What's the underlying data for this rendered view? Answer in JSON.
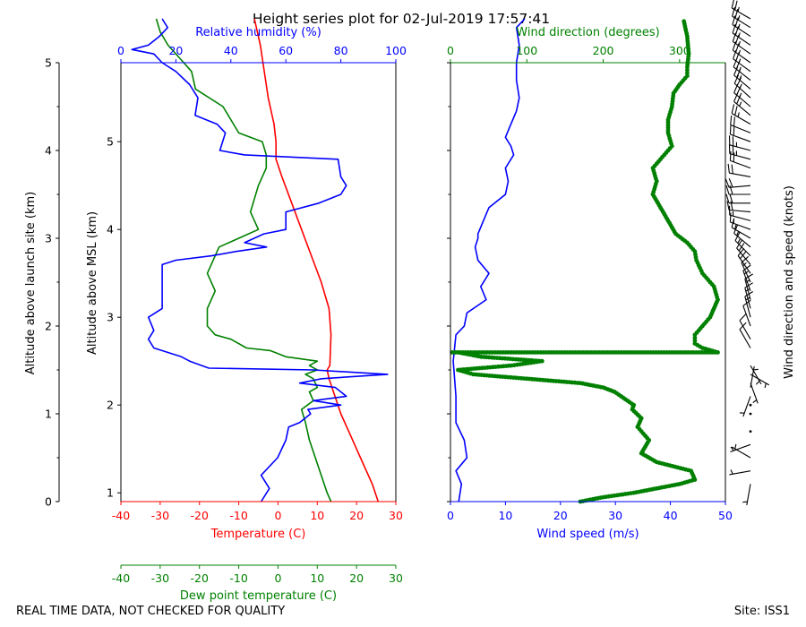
{
  "title": "Height series plot for 02-Jul-2019 17:57:41",
  "footer": {
    "left": "REAL TIME DATA, NOT CHECKED FOR QUALITY",
    "right": "Site: ISS1"
  },
  "colors": {
    "temperature": "#ff0000",
    "dewpoint": "#008000",
    "humidity": "#0000ff",
    "wind_speed": "#0000ff",
    "wind_direction": "#008000",
    "barbs": "#000000"
  },
  "chart_data": [
    {
      "type": "line",
      "name": "thermodynamic-profile",
      "axes": {
        "y_left_outer": {
          "label": "Altitude above launch site (km)",
          "range": [
            0,
            5
          ],
          "ticks": [
            0,
            1,
            2,
            3,
            4,
            5
          ]
        },
        "y_left_inner": {
          "label": "Altitude above MSL (km)",
          "range": [
            0.9,
            5.9
          ],
          "ticks": [
            1,
            2,
            3,
            4,
            5
          ],
          "tick_labels": [
            "1",
            "2",
            "3",
            "4",
            "5"
          ]
        },
        "x_top": {
          "label": "Relative humidity (%)",
          "range": [
            0,
            100
          ],
          "ticks": [
            0,
            20,
            40,
            60,
            80,
            100
          ]
        },
        "x_bottom": {
          "label": "Temperature (C)",
          "range": [
            -40,
            30
          ],
          "ticks": [
            -40,
            -30,
            -20,
            -10,
            0,
            10,
            20,
            30
          ]
        },
        "x_bottom2": {
          "label": "Dew point temperature (C)",
          "range": [
            -40,
            30
          ],
          "ticks": [
            -40,
            -30,
            -20,
            -10,
            0,
            10,
            20,
            30
          ]
        }
      },
      "series": [
        {
          "name": "Temperature",
          "axis": "x_bottom",
          "points": [
            [
              25.5,
              0
            ],
            [
              24,
              0.2
            ],
            [
              21,
              0.5
            ],
            [
              18,
              0.8
            ],
            [
              16,
              1.0
            ],
            [
              14.5,
              1.2
            ],
            [
              13,
              1.4
            ],
            [
              12.5,
              1.5
            ],
            [
              13.2,
              1.55
            ],
            [
              13.5,
              1.9
            ],
            [
              13,
              2.2
            ],
            [
              11,
              2.5
            ],
            [
              8.5,
              2.8
            ],
            [
              6,
              3.1
            ],
            [
              3.5,
              3.4
            ],
            [
              1,
              3.7
            ],
            [
              -0.5,
              3.9
            ],
            [
              -0.5,
              4.1
            ],
            [
              -1,
              4.3
            ],
            [
              -2.5,
              4.6
            ],
            [
              -3.5,
              4.9
            ],
            [
              -4.5,
              5.2
            ],
            [
              -6,
              5.5
            ]
          ]
        },
        {
          "name": "Dew point",
          "axis": "x_bottom2",
          "points": [
            [
              13.5,
              0
            ],
            [
              12.5,
              0.1
            ],
            [
              11,
              0.3
            ],
            [
              9.5,
              0.5
            ],
            [
              8,
              0.7
            ],
            [
              7,
              0.9
            ],
            [
              6,
              1.05
            ],
            [
              9,
              1.15
            ],
            [
              8,
              1.25
            ],
            [
              10,
              1.3
            ],
            [
              9,
              1.4
            ],
            [
              7,
              1.45
            ],
            [
              10,
              1.5
            ],
            [
              8,
              1.55
            ],
            [
              10,
              1.6
            ],
            [
              2,
              1.65
            ],
            [
              -2,
              1.72
            ],
            [
              -8,
              1.75
            ],
            [
              -12,
              1.85
            ],
            [
              -16,
              1.9
            ],
            [
              -18,
              2.0
            ],
            [
              -18,
              2.2
            ],
            [
              -17,
              2.3
            ],
            [
              -16,
              2.4
            ],
            [
              -18,
              2.6
            ],
            [
              -15,
              2.9
            ],
            [
              -10,
              3.0
            ],
            [
              -5,
              3.1
            ],
            [
              -6,
              3.2
            ],
            [
              -7,
              3.3
            ],
            [
              -5,
              3.6
            ],
            [
              -3,
              3.8
            ],
            [
              -3,
              3.95
            ],
            [
              -4,
              4.1
            ],
            [
              -10,
              4.2
            ],
            [
              -14,
              4.5
            ],
            [
              -21,
              4.7
            ],
            [
              -22,
              4.9
            ],
            [
              -24,
              5.0
            ],
            [
              -28,
              5.2
            ],
            [
              -30,
              5.35
            ],
            [
              -31,
              5.5
            ]
          ]
        },
        {
          "name": "Relative humidity",
          "axis": "x_top",
          "points": [
            [
              51,
              0
            ],
            [
              54,
              0.15
            ],
            [
              51,
              0.3
            ],
            [
              57,
              0.5
            ],
            [
              60,
              0.7
            ],
            [
              61,
              0.85
            ],
            [
              65,
              0.9
            ],
            [
              69,
              1.0
            ],
            [
              68,
              1.05
            ],
            [
              80,
              1.1
            ],
            [
              70,
              1.15
            ],
            [
              82,
              1.2
            ],
            [
              78,
              1.3
            ],
            [
              65,
              1.35
            ],
            [
              73,
              1.4
            ],
            [
              97,
              1.45
            ],
            [
              70,
              1.5
            ],
            [
              32,
              1.52
            ],
            [
              25,
              1.6
            ],
            [
              22,
              1.65
            ],
            [
              12,
              1.75
            ],
            [
              10,
              1.85
            ],
            [
              12,
              1.95
            ],
            [
              10,
              2.1
            ],
            [
              15,
              2.2
            ],
            [
              15,
              2.45
            ],
            [
              15,
              2.7
            ],
            [
              20,
              2.75
            ],
            [
              33,
              2.8
            ],
            [
              42,
              2.85
            ],
            [
              53,
              2.9
            ],
            [
              45,
              2.95
            ],
            [
              52,
              3.05
            ],
            [
              60,
              3.1
            ],
            [
              60,
              3.3
            ],
            [
              72,
              3.4
            ],
            [
              80,
              3.5
            ],
            [
              82,
              3.6
            ],
            [
              80,
              3.7
            ],
            [
              79,
              3.9
            ],
            [
              45,
              3.95
            ],
            [
              36,
              4.0
            ],
            [
              38,
              4.2
            ],
            [
              35,
              4.3
            ],
            [
              27,
              4.4
            ],
            [
              28,
              4.6
            ],
            [
              25,
              4.75
            ],
            [
              20,
              4.9
            ],
            [
              15,
              5.0
            ],
            [
              12,
              5.1
            ],
            [
              4,
              5.15
            ],
            [
              10,
              5.2
            ],
            [
              14,
              5.3
            ],
            [
              17,
              5.4
            ],
            [
              15,
              5.5
            ]
          ]
        }
      ]
    },
    {
      "type": "line",
      "name": "wind-profile",
      "axes": {
        "x_top": {
          "label": "Wind direction (degrees)",
          "range": [
            0,
            360
          ],
          "ticks": [
            0,
            100,
            200,
            300
          ]
        },
        "x_bottom": {
          "label": "Wind speed (m/s)",
          "range": [
            0,
            50
          ],
          "ticks": [
            0,
            10,
            20,
            30,
            40,
            50
          ]
        },
        "y": {
          "range": [
            0,
            5
          ]
        }
      },
      "series": [
        {
          "name": "Wind speed",
          "axis": "x_bottom",
          "points": [
            [
              1.5,
              0
            ],
            [
              2,
              0.2
            ],
            [
              1,
              0.35
            ],
            [
              3,
              0.5
            ],
            [
              2.5,
              0.7
            ],
            [
              1,
              0.9
            ],
            [
              1,
              1.2
            ],
            [
              0.5,
              1.6
            ],
            [
              1,
              1.9
            ],
            [
              2.5,
              2.0
            ],
            [
              3,
              2.15
            ],
            [
              6.5,
              2.3
            ],
            [
              5.5,
              2.45
            ],
            [
              7,
              2.6
            ],
            [
              5,
              2.75
            ],
            [
              4.5,
              2.9
            ],
            [
              5,
              3.0
            ],
            [
              5,
              3.05
            ],
            [
              6,
              3.2
            ],
            [
              7,
              3.35
            ],
            [
              10,
              3.5
            ],
            [
              10.5,
              3.65
            ],
            [
              10,
              3.8
            ],
            [
              11.5,
              3.95
            ],
            [
              11,
              4.05
            ],
            [
              10,
              4.15
            ],
            [
              11,
              4.3
            ],
            [
              12,
              4.45
            ],
            [
              12.5,
              4.6
            ],
            [
              12,
              4.8
            ],
            [
              12,
              5.0
            ],
            [
              12.5,
              5.2
            ],
            [
              12,
              5.4
            ],
            [
              13.5,
              5.5
            ]
          ]
        },
        {
          "name": "Wind direction",
          "axis": "x_top",
          "dotted": true,
          "points": [
            [
              170,
              0
            ],
            [
              200,
              0.05
            ],
            [
              240,
              0.1
            ],
            [
              270,
              0.15
            ],
            [
              300,
              0.2
            ],
            [
              320,
              0.25
            ],
            [
              315,
              0.35
            ],
            [
              270,
              0.45
            ],
            [
              250,
              0.55
            ],
            [
              260,
              0.7
            ],
            [
              245,
              0.85
            ],
            [
              250,
              0.95
            ],
            [
              238,
              1.05
            ],
            [
              240,
              1.1
            ],
            [
              215,
              1.25
            ],
            [
              200,
              1.3
            ],
            [
              170,
              1.35
            ],
            [
              100,
              1.4
            ],
            [
              30,
              1.45
            ],
            [
              10,
              1.5
            ],
            [
              80,
              1.55
            ],
            [
              120,
              1.6
            ],
            [
              40,
              1.65
            ],
            [
              10,
              1.7
            ],
            [
              2,
              1.7
            ],
            [
              350,
              1.7
            ],
            [
              330,
              1.75
            ],
            [
              320,
              1.8
            ],
            [
              320,
              1.9
            ],
            [
              330,
              2.0
            ],
            [
              340,
              2.1
            ],
            [
              345,
              2.2
            ],
            [
              350,
              2.3
            ],
            [
              345,
              2.45
            ],
            [
              330,
              2.6
            ],
            [
              322,
              2.75
            ],
            [
              320,
              2.85
            ],
            [
              310,
              2.95
            ],
            [
              295,
              3.05
            ],
            [
              285,
              3.2
            ],
            [
              275,
              3.35
            ],
            [
              265,
              3.5
            ],
            [
              270,
              3.65
            ],
            [
              265,
              3.8
            ],
            [
              280,
              3.95
            ],
            [
              290,
              4.05
            ],
            [
              285,
              4.2
            ],
            [
              285,
              4.35
            ],
            [
              290,
              4.5
            ],
            [
              292,
              4.65
            ],
            [
              300,
              4.75
            ],
            [
              310,
              4.85
            ],
            [
              310,
              4.95
            ],
            [
              312,
              5.1
            ],
            [
              310,
              5.3
            ],
            [
              305,
              5.5
            ]
          ]
        }
      ]
    },
    {
      "type": "barbs",
      "name": "wind-barbs",
      "label": "Wind direction and speed (knots)",
      "altitudes": [
        0.2,
        0.35,
        0.5,
        0.65,
        0.8,
        1.0,
        1.1,
        1.2,
        1.3,
        1.35,
        1.45,
        1.55,
        1.75,
        1.85,
        2.0,
        2.1,
        2.2,
        2.3,
        2.4,
        2.5,
        2.6,
        2.7,
        2.8,
        2.9,
        3.0,
        3.1,
        3.2,
        3.3,
        3.4,
        3.5,
        3.6,
        3.7,
        3.8,
        3.9,
        4.0,
        4.1,
        4.2,
        4.3,
        4.4,
        4.5,
        4.6,
        4.7,
        4.8,
        4.9,
        5.0,
        5.1,
        5.2,
        5.3,
        5.4,
        5.5
      ],
      "directions": [
        190,
        260,
        300,
        250,
        240,
        240,
        240,
        200,
        10,
        160,
        120,
        150,
        330,
        330,
        340,
        345,
        345,
        345,
        340,
        335,
        325,
        320,
        315,
        310,
        300,
        290,
        285,
        275,
        270,
        270,
        265,
        280,
        290,
        285,
        285,
        290,
        292,
        300,
        310,
        310,
        312,
        310,
        308,
        306,
        305,
        305,
        304,
        303,
        302,
        300
      ],
      "speeds_kt": [
        4,
        5,
        5,
        3,
        2,
        2,
        2,
        3,
        3,
        5,
        6,
        5,
        10,
        11,
        12,
        13,
        14,
        15,
        16,
        17,
        18,
        18,
        17,
        16,
        15,
        15,
        16,
        18,
        20,
        22,
        22,
        21,
        22,
        23,
        23,
        22,
        22,
        24,
        24,
        24,
        23,
        23,
        24,
        24,
        24,
        24,
        23,
        24,
        24,
        24
      ]
    }
  ]
}
